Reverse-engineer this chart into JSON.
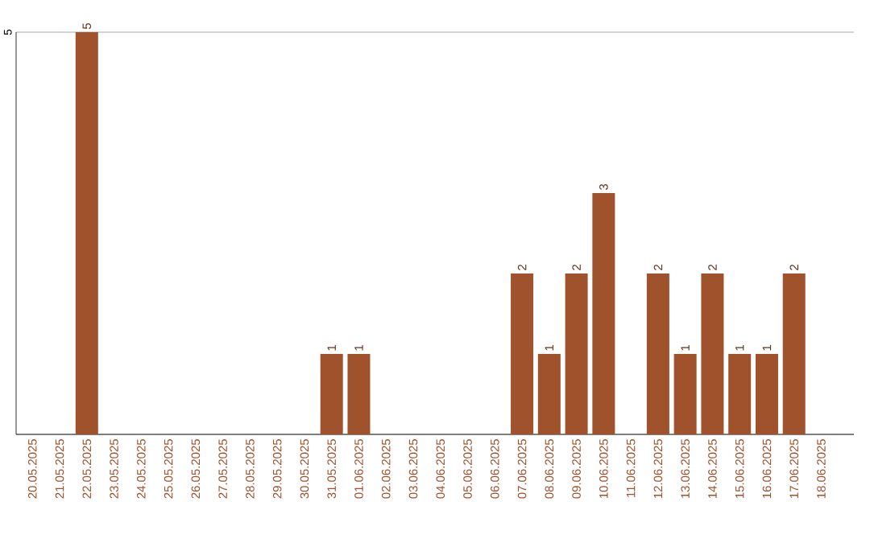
{
  "chart_data": {
    "type": "bar",
    "categories": [
      "20.05.2025",
      "21.05.2025",
      "22.05.2025",
      "23.05.2025",
      "24.05.2025",
      "25.05.2025",
      "26.05.2025",
      "27.05.2025",
      "28.05.2025",
      "29.05.2025",
      "30.05.2025",
      "31.05.2025",
      "01.06.2025",
      "02.06.2025",
      "03.06.2025",
      "04.06.2025",
      "05.06.2025",
      "06.06.2025",
      "07.06.2025",
      "08.06.2025",
      "09.06.2025",
      "10.06.2025",
      "11.06.2025",
      "12.06.2025",
      "13.06.2025",
      "14.06.2025",
      "15.06.2025",
      "16.06.2025",
      "17.06.2025",
      "18.06.2025"
    ],
    "values": [
      0,
      0,
      5,
      0,
      0,
      0,
      0,
      0,
      0,
      0,
      0,
      1,
      1,
      0,
      0,
      0,
      0,
      0,
      2,
      1,
      2,
      3,
      0,
      2,
      1,
      2,
      1,
      1,
      2,
      0
    ],
    "value_labels": [
      null,
      null,
      "5",
      null,
      null,
      null,
      null,
      null,
      null,
      null,
      null,
      "1",
      "1",
      null,
      null,
      null,
      null,
      null,
      "2",
      "1",
      "2",
      "3",
      null,
      "2",
      "1",
      "2",
      "1",
      "1",
      "2",
      null
    ],
    "color": "#a0522d",
    "ylim": [
      0,
      5
    ],
    "yticks": [
      {
        "value": 0,
        "label": null
      },
      5
    ],
    "grid": "y"
  }
}
